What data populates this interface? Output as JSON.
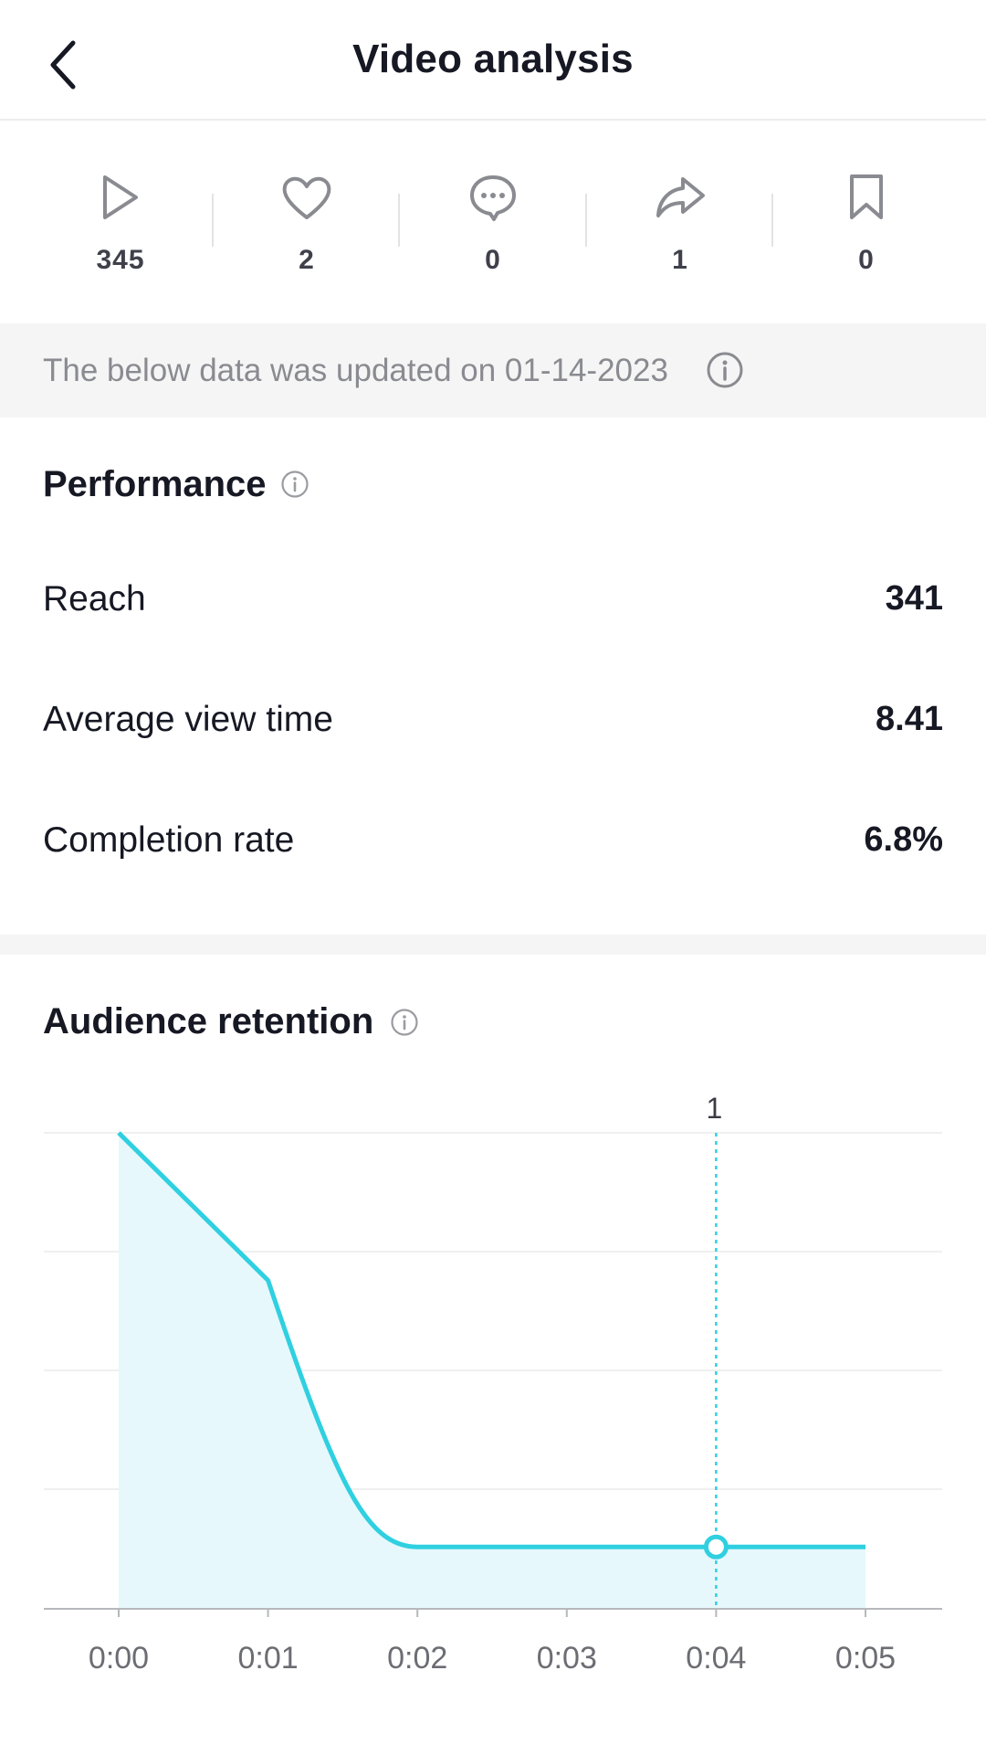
{
  "header": {
    "title": "Video analysis"
  },
  "stats": [
    {
      "icon": "play-icon",
      "value": "345"
    },
    {
      "icon": "heart-icon",
      "value": "2"
    },
    {
      "icon": "comment-icon",
      "value": "0"
    },
    {
      "icon": "share-icon",
      "value": "1"
    },
    {
      "icon": "bookmark-icon",
      "value": "0"
    }
  ],
  "update_notice": "The below data was updated on 01-14-2023",
  "performance": {
    "title": "Performance",
    "rows": [
      {
        "label": "Reach",
        "value": "341"
      },
      {
        "label": "Average view time",
        "value": "8.41"
      },
      {
        "label": "Completion rate",
        "value": "6.8%"
      }
    ]
  },
  "retention": {
    "title": "Audience retention"
  },
  "colors": {
    "accent": "#2fd0e0",
    "fill": "#e6f8fc",
    "text": "#161823",
    "muted": "#8a8b91"
  },
  "chart_data": {
    "type": "area",
    "x": [
      "0:00",
      "0:01",
      "0:02",
      "0:03",
      "0:04",
      "0:05"
    ],
    "series": [
      {
        "values": [
          100,
          69,
          13,
          13,
          13,
          13
        ]
      }
    ],
    "ylim": [
      0,
      100
    ],
    "grid": true,
    "marker": {
      "x": "0:04",
      "label": "1"
    }
  }
}
